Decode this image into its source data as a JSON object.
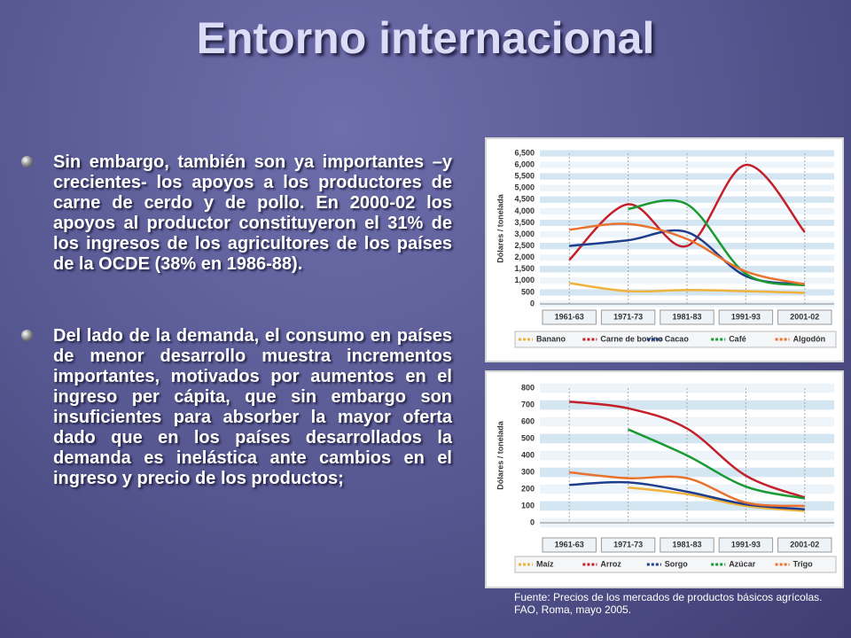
{
  "title": "Entorno internacional",
  "bullets": [
    "Sin embargo, también son ya importantes –y crecientes- los apoyos a los productores de carne de cerdo y de pollo. En 2000-02 los apoyos al productor constituyeron el 31% de los ingresos de los agricultores de los países de la OCDE (38% en 1986-88).",
    "Del lado de la demanda, el consumo en países de menor desarrollo muestra incrementos importantes, motivados por aumentos en el ingreso per cápita, que sin embargo son insuficientes para absorber la mayor oferta dado que en los países desarrollados la demanda es inelástica ante cambios en el ingreso y precio de los productos;"
  ],
  "source": "Fuente: Precios de los mercados de productos básicos agrícolas. FAO, Roma, mayo 2005.",
  "chart_data": [
    {
      "type": "line",
      "y_label": "Dólares / tonelada",
      "categories": [
        "1961-63",
        "1971-73",
        "1981-83",
        "1991-93",
        "2001-02"
      ],
      "ylim": [
        0,
        6500
      ],
      "yticks": [
        0,
        500,
        {
          "value": 1000,
          "label": "1,000"
        },
        {
          "value": 1500,
          "label": "1,500"
        },
        {
          "value": 2000,
          "label": "2,000"
        },
        {
          "value": 2500,
          "label": "2,500"
        },
        {
          "value": 3000,
          "label": "3,000"
        },
        {
          "value": 3500,
          "label": "3,500"
        },
        {
          "value": 4000,
          "label": "4,000"
        },
        {
          "value": 4500,
          "label": "4,500"
        },
        {
          "value": 5000,
          "label": "5,000"
        },
        {
          "value": 5500,
          "label": "5,500"
        },
        {
          "value": 6000,
          "label": "6,000"
        },
        {
          "value": 6500,
          "label": "6,500"
        }
      ],
      "grid": true,
      "series": [
        {
          "name": "Banano",
          "color": "#f0b23c",
          "values": [
            900,
            550,
            600,
            550,
            480
          ]
        },
        {
          "name": "Carne de bovino",
          "color": "#c41f2a",
          "values": [
            1900,
            4300,
            2500,
            6000,
            3100
          ]
        },
        {
          "name": "Cacao",
          "color": "#1e3d8c",
          "values": [
            2500,
            2750,
            3100,
            1200,
            850
          ]
        },
        {
          "name": "Café",
          "color": "#1a9a32",
          "values": [
            null,
            4100,
            4300,
            1300,
            800
          ]
        },
        {
          "name": "Algodón",
          "color": "#e8722e",
          "values": [
            3200,
            3450,
            2800,
            1400,
            850
          ]
        }
      ]
    },
    {
      "type": "line",
      "y_label": "Dólares / tonelada",
      "categories": [
        "1961-63",
        "1971-73",
        "1981-83",
        "1991-93",
        "2001-02"
      ],
      "ylim": [
        0,
        800
      ],
      "yticks": [
        0,
        100,
        200,
        300,
        400,
        500,
        600,
        700,
        800
      ],
      "grid": true,
      "series": [
        {
          "name": "Maíz",
          "color": "#f0b23c",
          "values": [
            null,
            210,
            170,
            100,
            70
          ]
        },
        {
          "name": "Arroz",
          "color": "#c41f2a",
          "values": [
            720,
            680,
            560,
            280,
            150
          ]
        },
        {
          "name": "Sorgo",
          "color": "#1e3d8c",
          "values": [
            225,
            240,
            185,
            110,
            80
          ]
        },
        {
          "name": "Azúcar",
          "color": "#1a9a32",
          "values": [
            null,
            555,
            400,
            215,
            145
          ]
        },
        {
          "name": "Trigo",
          "color": "#e8722e",
          "values": [
            300,
            265,
            265,
            120,
            100
          ]
        }
      ]
    }
  ]
}
